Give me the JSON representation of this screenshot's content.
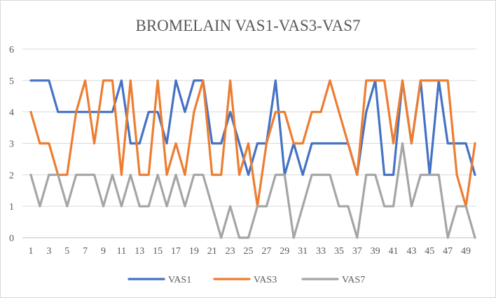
{
  "chart_data": {
    "type": "line",
    "title": "BROMELAIN  VAS1-VAS3-VAS7",
    "xlabel": "",
    "ylabel": "",
    "ylim": [
      0,
      6
    ],
    "yticks": [
      0,
      1,
      2,
      3,
      4,
      5,
      6
    ],
    "x": [
      1,
      2,
      3,
      4,
      5,
      6,
      7,
      8,
      9,
      10,
      11,
      12,
      13,
      14,
      15,
      16,
      17,
      18,
      19,
      20,
      21,
      22,
      23,
      24,
      25,
      26,
      27,
      28,
      29,
      30,
      31,
      32,
      33,
      34,
      35,
      36,
      37,
      38,
      39,
      40,
      41,
      42,
      43,
      44,
      45,
      46,
      47,
      48,
      49,
      50
    ],
    "xtick_labels": [
      "1",
      "3",
      "5",
      "7",
      "9",
      "11",
      "13",
      "15",
      "17",
      "19",
      "21",
      "23",
      "25",
      "27",
      "29",
      "31",
      "33",
      "35",
      "37",
      "39",
      "41",
      "43",
      "45",
      "47",
      "49"
    ],
    "grid": true,
    "legend_position": "bottom",
    "series": [
      {
        "name": "VAS1",
        "color": "#4472c4",
        "values": [
          5,
          5,
          5,
          4,
          4,
          4,
          4,
          4,
          4,
          4,
          5,
          3,
          3,
          4,
          4,
          3,
          5,
          4,
          5,
          5,
          3,
          3,
          4,
          3,
          2,
          3,
          3,
          5,
          2,
          3,
          2,
          3,
          3,
          3,
          3,
          3,
          2,
          4,
          5,
          2,
          2,
          5,
          3,
          5,
          2,
          5,
          3,
          3,
          3,
          2
        ]
      },
      {
        "name": "VAS3",
        "color": "#ed7d31",
        "values": [
          4,
          3,
          3,
          2,
          2,
          4,
          5,
          3,
          5,
          5,
          2,
          5,
          2,
          2,
          5,
          2,
          3,
          2,
          4,
          5,
          2,
          2,
          5,
          2,
          3,
          1,
          3,
          4,
          4,
          3,
          3,
          4,
          4,
          5,
          4,
          3,
          2,
          5,
          5,
          5,
          3,
          5,
          3,
          5,
          5,
          5,
          5,
          2,
          1,
          3
        ]
      },
      {
        "name": "VAS7",
        "color": "#a5a5a5",
        "values": [
          2,
          1,
          2,
          2,
          1,
          2,
          2,
          2,
          1,
          2,
          1,
          2,
          1,
          1,
          2,
          1,
          2,
          1,
          2,
          2,
          1,
          0,
          1,
          0,
          0,
          1,
          1,
          2,
          2,
          0,
          1,
          2,
          2,
          2,
          1,
          1,
          0,
          2,
          2,
          1,
          1,
          3,
          1,
          2,
          2,
          2,
          0,
          1,
          1,
          0
        ]
      }
    ]
  }
}
